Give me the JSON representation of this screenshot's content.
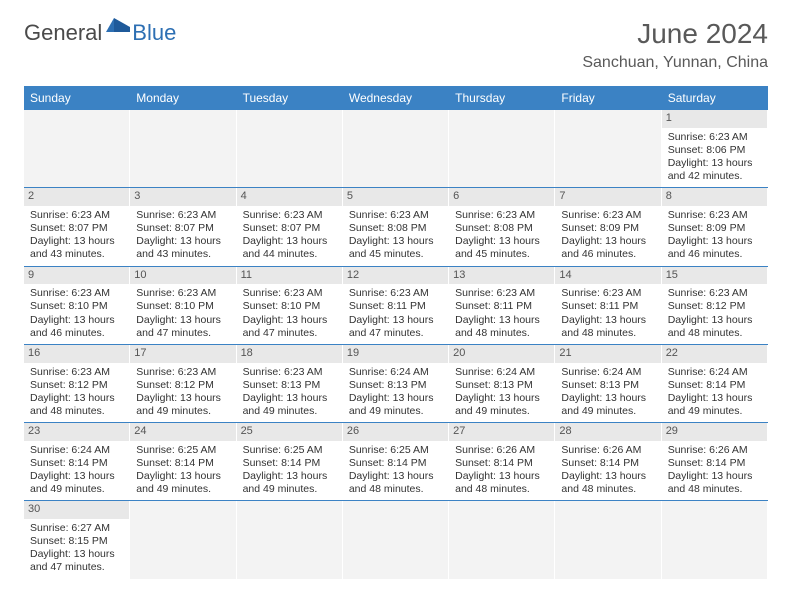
{
  "brand": {
    "text1": "General",
    "text2": "Blue"
  },
  "title": "June 2024",
  "location": "Sanchuan, Yunnan, China",
  "colors": {
    "header_bg": "#3b82c4",
    "header_text": "#ffffff",
    "daynum_bg": "#e8e8e8",
    "row_divider": "#3b82c4",
    "text": "#333333",
    "title_text": "#595959",
    "brand_blue": "#2d6fb3"
  },
  "weekdays": [
    "Sunday",
    "Monday",
    "Tuesday",
    "Wednesday",
    "Thursday",
    "Friday",
    "Saturday"
  ],
  "weeks": [
    [
      null,
      null,
      null,
      null,
      null,
      null,
      {
        "n": "1",
        "sr": "6:23 AM",
        "ss": "8:06 PM",
        "dl": "13 hours and 42 minutes."
      }
    ],
    [
      {
        "n": "2",
        "sr": "6:23 AM",
        "ss": "8:07 PM",
        "dl": "13 hours and 43 minutes."
      },
      {
        "n": "3",
        "sr": "6:23 AM",
        "ss": "8:07 PM",
        "dl": "13 hours and 43 minutes."
      },
      {
        "n": "4",
        "sr": "6:23 AM",
        "ss": "8:07 PM",
        "dl": "13 hours and 44 minutes."
      },
      {
        "n": "5",
        "sr": "6:23 AM",
        "ss": "8:08 PM",
        "dl": "13 hours and 45 minutes."
      },
      {
        "n": "6",
        "sr": "6:23 AM",
        "ss": "8:08 PM",
        "dl": "13 hours and 45 minutes."
      },
      {
        "n": "7",
        "sr": "6:23 AM",
        "ss": "8:09 PM",
        "dl": "13 hours and 46 minutes."
      },
      {
        "n": "8",
        "sr": "6:23 AM",
        "ss": "8:09 PM",
        "dl": "13 hours and 46 minutes."
      }
    ],
    [
      {
        "n": "9",
        "sr": "6:23 AM",
        "ss": "8:10 PM",
        "dl": "13 hours and 46 minutes."
      },
      {
        "n": "10",
        "sr": "6:23 AM",
        "ss": "8:10 PM",
        "dl": "13 hours and 47 minutes."
      },
      {
        "n": "11",
        "sr": "6:23 AM",
        "ss": "8:10 PM",
        "dl": "13 hours and 47 minutes."
      },
      {
        "n": "12",
        "sr": "6:23 AM",
        "ss": "8:11 PM",
        "dl": "13 hours and 47 minutes."
      },
      {
        "n": "13",
        "sr": "6:23 AM",
        "ss": "8:11 PM",
        "dl": "13 hours and 48 minutes."
      },
      {
        "n": "14",
        "sr": "6:23 AM",
        "ss": "8:11 PM",
        "dl": "13 hours and 48 minutes."
      },
      {
        "n": "15",
        "sr": "6:23 AM",
        "ss": "8:12 PM",
        "dl": "13 hours and 48 minutes."
      }
    ],
    [
      {
        "n": "16",
        "sr": "6:23 AM",
        "ss": "8:12 PM",
        "dl": "13 hours and 48 minutes."
      },
      {
        "n": "17",
        "sr": "6:23 AM",
        "ss": "8:12 PM",
        "dl": "13 hours and 49 minutes."
      },
      {
        "n": "18",
        "sr": "6:23 AM",
        "ss": "8:13 PM",
        "dl": "13 hours and 49 minutes."
      },
      {
        "n": "19",
        "sr": "6:24 AM",
        "ss": "8:13 PM",
        "dl": "13 hours and 49 minutes."
      },
      {
        "n": "20",
        "sr": "6:24 AM",
        "ss": "8:13 PM",
        "dl": "13 hours and 49 minutes."
      },
      {
        "n": "21",
        "sr": "6:24 AM",
        "ss": "8:13 PM",
        "dl": "13 hours and 49 minutes."
      },
      {
        "n": "22",
        "sr": "6:24 AM",
        "ss": "8:14 PM",
        "dl": "13 hours and 49 minutes."
      }
    ],
    [
      {
        "n": "23",
        "sr": "6:24 AM",
        "ss": "8:14 PM",
        "dl": "13 hours and 49 minutes."
      },
      {
        "n": "24",
        "sr": "6:25 AM",
        "ss": "8:14 PM",
        "dl": "13 hours and 49 minutes."
      },
      {
        "n": "25",
        "sr": "6:25 AM",
        "ss": "8:14 PM",
        "dl": "13 hours and 49 minutes."
      },
      {
        "n": "26",
        "sr": "6:25 AM",
        "ss": "8:14 PM",
        "dl": "13 hours and 48 minutes."
      },
      {
        "n": "27",
        "sr": "6:26 AM",
        "ss": "8:14 PM",
        "dl": "13 hours and 48 minutes."
      },
      {
        "n": "28",
        "sr": "6:26 AM",
        "ss": "8:14 PM",
        "dl": "13 hours and 48 minutes."
      },
      {
        "n": "29",
        "sr": "6:26 AM",
        "ss": "8:14 PM",
        "dl": "13 hours and 48 minutes."
      }
    ],
    [
      {
        "n": "30",
        "sr": "6:27 AM",
        "ss": "8:15 PM",
        "dl": "13 hours and 47 minutes."
      },
      null,
      null,
      null,
      null,
      null,
      null
    ]
  ],
  "labels": {
    "sunrise": "Sunrise:",
    "sunset": "Sunset:",
    "daylight": "Daylight:"
  }
}
